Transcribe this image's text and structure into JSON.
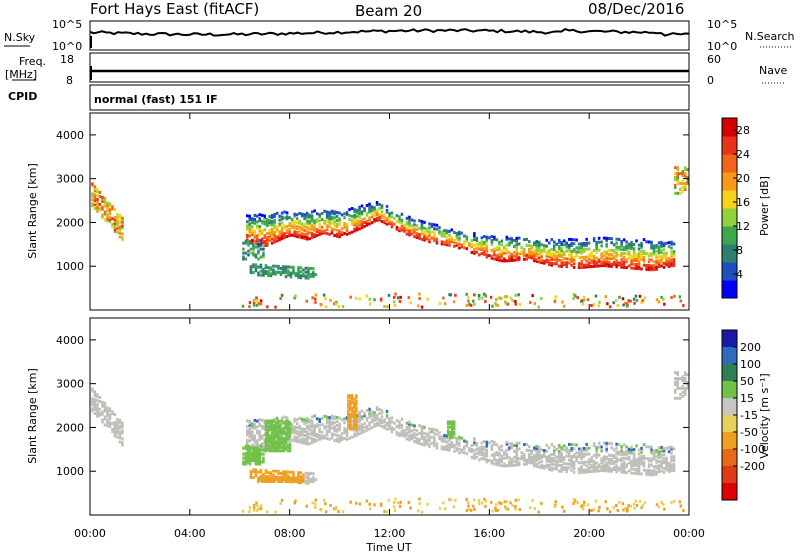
{
  "header": {
    "station": "Fort Hays East (fitACF)",
    "beam": "Beam 20",
    "date": "08/Dec/2016"
  },
  "top_panels": {
    "nsky_label": "N.Sky",
    "nsky_ticks": [
      "10^5",
      "10^0"
    ],
    "nsearch_label": "N.Search",
    "nsearch_ticks": [
      "10^5",
      "10^0"
    ],
    "freq_label": "Freq.",
    "freq_unit": "[MHz]",
    "freq_ticks": [
      "18",
      "8"
    ],
    "nave_label": "Nave",
    "nave_ticks": [
      "60",
      "0"
    ],
    "cpid_label": "CPID",
    "cpid_value": "normal (fast) 151 IF"
  },
  "colors": {
    "power": [
      "#0000ff",
      "#1f4fbf",
      "#2e7f6f",
      "#3da64f",
      "#8fd23a",
      "#f7d11a",
      "#f79a1a",
      "#f2641a",
      "#e8321a",
      "#d40000"
    ],
    "velocity": [
      "#1a1aa8",
      "#2e6bbf",
      "#2f7f55",
      "#72c24a",
      "#c6c6c1",
      "#e6d25a",
      "#f0a020",
      "#e86a18",
      "#e03a18",
      "#dd0000"
    ],
    "ground_scatter": "#bfbfba"
  },
  "chart_data": [
    {
      "type": "heatmap",
      "name": "power",
      "x_label": "Time UT",
      "ylabel": "Slant Range [km]",
      "xlim": [
        0,
        24
      ],
      "ylim": [
        0,
        4500
      ],
      "x_ticks": [
        "00:00",
        "04:00",
        "08:00",
        "12:00",
        "16:00",
        "20:00",
        "00:00"
      ],
      "y_ticks": [
        1000,
        2000,
        3000,
        4000
      ],
      "colorbar_label": "Power [dB]",
      "colorbar_ticks": [
        4,
        8,
        12,
        16,
        20,
        24,
        28
      ],
      "colorbar_range": [
        0,
        30
      ],
      "main_band_lower_edge_km": [
        [
          6.3,
          1600
        ],
        [
          7.0,
          1500
        ],
        [
          8.0,
          1750
        ],
        [
          8.7,
          1650
        ],
        [
          9.3,
          1800
        ],
        [
          10.0,
          1700
        ],
        [
          10.8,
          1900
        ],
        [
          11.5,
          2100
        ],
        [
          12.5,
          1800
        ],
        [
          13.5,
          1600
        ],
        [
          14.5,
          1500
        ],
        [
          15.5,
          1300
        ],
        [
          16.5,
          1150
        ],
        [
          17.5,
          1200
        ],
        [
          18.5,
          1050
        ],
        [
          19.5,
          1000
        ],
        [
          20.5,
          1050
        ],
        [
          21.5,
          1000
        ],
        [
          22.5,
          950
        ],
        [
          23.3,
          1050
        ]
      ],
      "main_band_upper_edge_km": [
        [
          6.3,
          2200
        ],
        [
          8.0,
          2300
        ],
        [
          10.0,
          2300
        ],
        [
          11.5,
          2500
        ],
        [
          13.0,
          2100
        ],
        [
          15.0,
          1800
        ],
        [
          17.0,
          1700
        ],
        [
          19.0,
          1650
        ],
        [
          21.0,
          1700
        ],
        [
          23.0,
          1600
        ]
      ],
      "early_patch_km": [
        [
          0.0,
          2700
        ],
        [
          1.0,
          2100
        ]
      ],
      "lower_band_km": [
        [
          6.3,
          1000
        ],
        [
          9.0,
          900
        ]
      ]
    },
    {
      "type": "heatmap",
      "name": "velocity",
      "x_label": "Time UT",
      "ylabel": "Slant Range [km]",
      "xlim": [
        0,
        24
      ],
      "ylim": [
        0,
        4500
      ],
      "x_ticks": [
        "00:00",
        "04:00",
        "08:00",
        "12:00",
        "16:00",
        "20:00",
        "00:00"
      ],
      "y_ticks": [
        1000,
        2000,
        3000,
        4000
      ],
      "colorbar_label": "Velocity [m s⁻¹]",
      "colorbar_ticks": [
        "200",
        "100",
        "50",
        "15",
        "-15",
        "-50",
        "-100",
        "-200"
      ],
      "dominant_class": "ground scatter",
      "highlight_patches": [
        {
          "t": [
            6.2,
            6.8
          ],
          "r": [
            1200,
            1600
          ],
          "class": "green"
        },
        {
          "t": [
            6.7,
            8.5
          ],
          "r": [
            800,
            900
          ],
          "class": "orange"
        },
        {
          "t": [
            7.0,
            8.0
          ],
          "r": [
            1500,
            2200
          ],
          "class": "green"
        },
        {
          "t": [
            10.3,
            10.7
          ],
          "r": [
            2000,
            2800
          ],
          "class": "orange"
        },
        {
          "t": [
            14.3,
            14.6
          ],
          "r": [
            1800,
            2200
          ],
          "class": "green"
        }
      ]
    }
  ],
  "footer": {
    "x_axis_title": "Time UT",
    "x_ticks": [
      "00:00",
      "04:00",
      "08:00",
      "12:00",
      "16:00",
      "20:00",
      "00:00"
    ]
  }
}
